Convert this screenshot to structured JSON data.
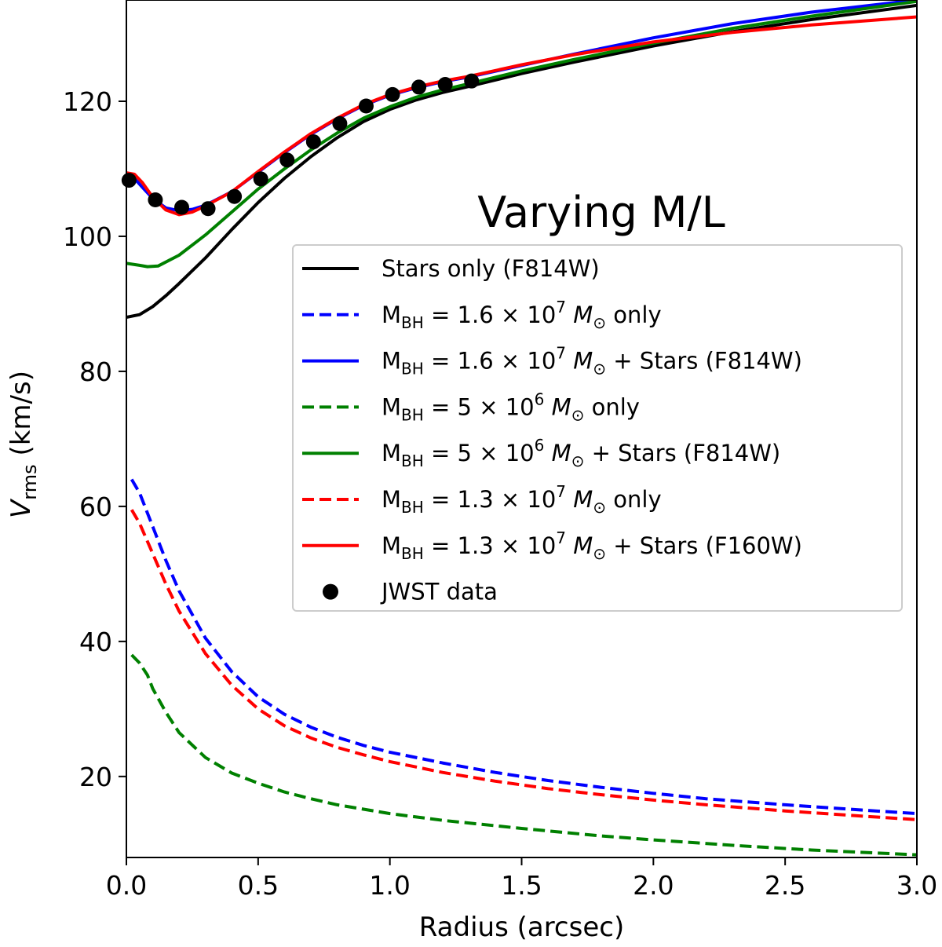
{
  "chart_data": {
    "type": "line",
    "title": "",
    "annotation": "Varying M/L",
    "xlabel": "Radius (arcsec)",
    "ylabel_main": "V",
    "ylabel_sub": "rms",
    "ylabel_unit": " (km/s)",
    "xlim": [
      0.0,
      3.0
    ],
    "ylim": [
      8,
      135
    ],
    "xticks": [
      0.0,
      0.5,
      1.0,
      1.5,
      2.0,
      2.5,
      3.0
    ],
    "xtick_labels": [
      "0.0",
      "0.5",
      "1.0",
      "1.5",
      "2.0",
      "2.5",
      "3.0"
    ],
    "yticks": [
      20,
      40,
      60,
      80,
      100,
      120
    ],
    "ytick_labels": [
      "20",
      "40",
      "60",
      "80",
      "100",
      "120"
    ],
    "grid": false,
    "legend_position": "center-right",
    "series": [
      {
        "name": "Stars only (F814W)",
        "color": "#000000",
        "style": "solid",
        "x": [
          0.0,
          0.05,
          0.1,
          0.15,
          0.2,
          0.3,
          0.4,
          0.5,
          0.6,
          0.7,
          0.8,
          0.9,
          1.0,
          1.1,
          1.2,
          1.3,
          1.5,
          1.7,
          2.0,
          2.3,
          2.6,
          3.0
        ],
        "y": [
          88.0,
          88.4,
          89.6,
          91.2,
          93.0,
          96.8,
          101.0,
          105.0,
          108.6,
          111.8,
          114.6,
          117.0,
          118.8,
          120.2,
          121.3,
          122.2,
          124.1,
          125.8,
          128.2,
          130.3,
          132.1,
          134.2
        ]
      },
      {
        "name": "M_BH = 1.6 × 10^7 M_⊙ only",
        "color": "#0000ff",
        "style": "dashed",
        "x": [
          0.02,
          0.05,
          0.1,
          0.15,
          0.2,
          0.3,
          0.4,
          0.5,
          0.6,
          0.7,
          0.8,
          0.9,
          1.0,
          1.2,
          1.4,
          1.6,
          1.8,
          2.0,
          2.2,
          2.5,
          2.8,
          3.0
        ],
        "y": [
          64.0,
          62.0,
          57.0,
          52.0,
          47.5,
          40.5,
          35.5,
          31.8,
          29.2,
          27.3,
          25.8,
          24.6,
          23.6,
          22.0,
          20.6,
          19.4,
          18.4,
          17.5,
          16.7,
          15.8,
          15.0,
          14.5
        ]
      },
      {
        "name": "M_BH = 1.6 × 10^7 M_⊙ + Stars (F814W)",
        "color": "#0000ff",
        "style": "solid",
        "x": [
          0.0,
          0.03,
          0.06,
          0.1,
          0.15,
          0.2,
          0.25,
          0.3,
          0.4,
          0.5,
          0.6,
          0.7,
          0.8,
          0.9,
          1.0,
          1.1,
          1.2,
          1.3,
          1.5,
          1.7,
          2.0,
          2.3,
          2.6,
          3.0
        ],
        "y": [
          108.8,
          108.6,
          107.3,
          105.6,
          104.2,
          103.8,
          104.0,
          104.6,
          106.6,
          109.5,
          112.4,
          115.1,
          117.4,
          119.4,
          120.9,
          122.0,
          122.9,
          123.6,
          125.3,
          127.0,
          129.4,
          131.5,
          133.2,
          135.0
        ]
      },
      {
        "name": "M_BH = 5 × 10^6 M_⊙ only",
        "color": "#008000",
        "style": "dashed",
        "x": [
          0.02,
          0.05,
          0.08,
          0.1,
          0.15,
          0.2,
          0.3,
          0.4,
          0.5,
          0.6,
          0.7,
          0.8,
          1.0,
          1.2,
          1.5,
          1.8,
          2.0,
          2.3,
          2.6,
          3.0
        ],
        "y": [
          38.0,
          36.8,
          35.0,
          33.0,
          29.5,
          26.5,
          22.8,
          20.5,
          19.0,
          17.7,
          16.7,
          15.8,
          14.5,
          13.5,
          12.3,
          11.2,
          10.6,
          9.8,
          9.1,
          8.4
        ]
      },
      {
        "name": "M_BH = 5 × 10^6 M_⊙ + Stars (F814W)",
        "color": "#008000",
        "style": "solid",
        "x": [
          0.0,
          0.05,
          0.08,
          0.12,
          0.2,
          0.3,
          0.4,
          0.5,
          0.6,
          0.7,
          0.8,
          0.9,
          1.0,
          1.1,
          1.2,
          1.3,
          1.5,
          1.7,
          2.0,
          2.3,
          2.6,
          3.0
        ],
        "y": [
          96.0,
          95.7,
          95.5,
          95.6,
          97.2,
          100.2,
          103.6,
          107.0,
          110.0,
          112.8,
          115.3,
          117.5,
          119.2,
          120.6,
          121.7,
          122.6,
          124.5,
          126.2,
          128.6,
          130.8,
          132.6,
          134.8
        ]
      },
      {
        "name": "M_BH = 1.3 × 10^7 M_⊙ only",
        "color": "#ff0000",
        "style": "dashed",
        "x": [
          0.02,
          0.05,
          0.1,
          0.15,
          0.2,
          0.3,
          0.4,
          0.5,
          0.6,
          0.7,
          0.8,
          0.9,
          1.0,
          1.2,
          1.4,
          1.6,
          1.8,
          2.0,
          2.2,
          2.5,
          2.8,
          3.0
        ],
        "y": [
          59.5,
          57.5,
          53.0,
          48.5,
          44.5,
          38.2,
          33.5,
          30.0,
          27.5,
          25.7,
          24.3,
          23.2,
          22.2,
          20.6,
          19.3,
          18.2,
          17.3,
          16.5,
          15.8,
          14.9,
          14.1,
          13.6
        ]
      },
      {
        "name": "M_BH = 1.3 × 10^7 M_⊙ + Stars (F160W)",
        "color": "#ff0000",
        "style": "solid",
        "x": [
          0.0,
          0.03,
          0.06,
          0.1,
          0.15,
          0.2,
          0.25,
          0.3,
          0.4,
          0.5,
          0.6,
          0.7,
          0.8,
          0.9,
          1.0,
          1.1,
          1.2,
          1.3,
          1.5,
          1.7,
          2.0,
          2.3,
          2.6,
          3.0
        ],
        "y": [
          109.4,
          109.2,
          108.0,
          105.8,
          103.9,
          103.2,
          103.6,
          104.5,
          106.6,
          109.6,
          112.5,
          115.2,
          117.5,
          119.5,
          121.0,
          122.1,
          123.0,
          123.7,
          125.4,
          126.9,
          128.8,
          130.2,
          131.3,
          132.5
        ]
      },
      {
        "name": "JWST data",
        "color": "#000000",
        "style": "marker",
        "x": [
          0.01,
          0.11,
          0.21,
          0.31,
          0.41,
          0.51,
          0.61,
          0.71,
          0.81,
          0.91,
          1.01,
          1.11,
          1.21,
          1.31
        ],
        "y": [
          108.3,
          105.4,
          104.3,
          104.1,
          105.9,
          108.5,
          111.3,
          114.0,
          116.7,
          119.3,
          121.0,
          122.1,
          122.5,
          123.0
        ]
      }
    ],
    "legend": {
      "entries": [
        {
          "parts": [
            {
              "t": "Stars only (F814W)"
            }
          ]
        },
        {
          "parts": [
            {
              "t": "M"
            },
            {
              "t": "BH",
              "sub": true
            },
            {
              "t": " = 1.6 × 10"
            },
            {
              "t": "7",
              "sup": true
            },
            {
              "t": " "
            },
            {
              "t": "M",
              "italic": true
            },
            {
              "t": "⊙",
              "sub": true
            },
            {
              "t": " only"
            }
          ]
        },
        {
          "parts": [
            {
              "t": "M"
            },
            {
              "t": "BH",
              "sub": true
            },
            {
              "t": " = 1.6 × 10"
            },
            {
              "t": "7",
              "sup": true
            },
            {
              "t": " "
            },
            {
              "t": "M",
              "italic": true
            },
            {
              "t": "⊙",
              "sub": true
            },
            {
              "t": " + Stars (F814W)"
            }
          ]
        },
        {
          "parts": [
            {
              "t": "M"
            },
            {
              "t": "BH",
              "sub": true
            },
            {
              "t": " = 5 × 10"
            },
            {
              "t": "6",
              "sup": true
            },
            {
              "t": " "
            },
            {
              "t": "M",
              "italic": true
            },
            {
              "t": "⊙",
              "sub": true
            },
            {
              "t": " only"
            }
          ]
        },
        {
          "parts": [
            {
              "t": "M"
            },
            {
              "t": "BH",
              "sub": true
            },
            {
              "t": " = 5 × 10"
            },
            {
              "t": "6",
              "sup": true
            },
            {
              "t": " "
            },
            {
              "t": "M",
              "italic": true
            },
            {
              "t": "⊙",
              "sub": true
            },
            {
              "t": " + Stars (F814W)"
            }
          ]
        },
        {
          "parts": [
            {
              "t": "M"
            },
            {
              "t": "BH",
              "sub": true
            },
            {
              "t": " = 1.3 × 10"
            },
            {
              "t": "7",
              "sup": true
            },
            {
              "t": " "
            },
            {
              "t": "M",
              "italic": true
            },
            {
              "t": "⊙",
              "sub": true
            },
            {
              "t": " only"
            }
          ]
        },
        {
          "parts": [
            {
              "t": "M"
            },
            {
              "t": "BH",
              "sub": true
            },
            {
              "t": " = 1.3 × 10"
            },
            {
              "t": "7",
              "sup": true
            },
            {
              "t": " "
            },
            {
              "t": "M",
              "italic": true
            },
            {
              "t": "⊙",
              "sub": true
            },
            {
              "t": " + Stars (F160W)"
            }
          ]
        },
        {
          "parts": [
            {
              "t": "JWST data"
            }
          ]
        }
      ]
    }
  }
}
